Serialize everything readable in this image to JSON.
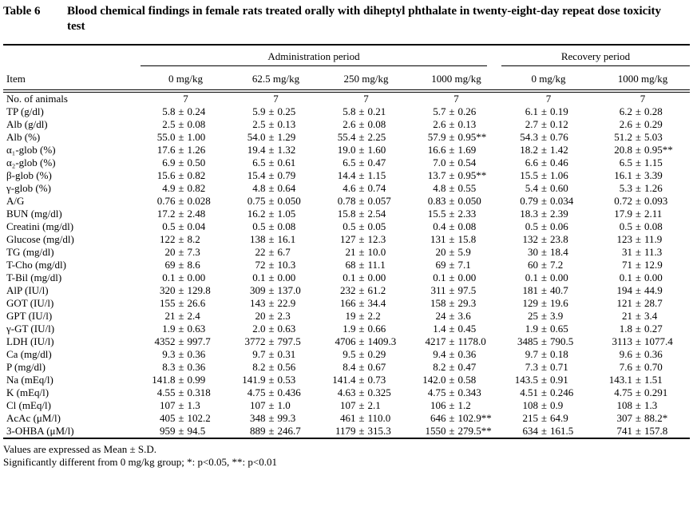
{
  "page": {
    "background": "#ffffff",
    "text_color": "#000000"
  },
  "title": {
    "label": "Table 6",
    "text": "Blood chemical findings in female rats treated orally with diheptyl phthalate in twenty-eight-day repeat dose toxicity test"
  },
  "table": {
    "groups": [
      {
        "label": "Administration period",
        "span": 4
      },
      {
        "label": "Recovery period",
        "span": 2
      }
    ],
    "item_header": "Item",
    "columns": [
      "0 mg/kg",
      "62.5 mg/kg",
      "250 mg/kg",
      "1000 mg/kg",
      "0 mg/kg",
      "1000 mg/kg"
    ],
    "rows": [
      {
        "item": "No. of animals",
        "values": [
          "7",
          "7",
          "7",
          "7",
          "7",
          "7"
        ]
      },
      {
        "item": "TP (g/dl)",
        "values": [
          "5.8 ± 0.24",
          "5.9 ± 0.25",
          "5.8 ± 0.21",
          "5.7 ± 0.26",
          "6.1 ± 0.19",
          "6.2 ± 0.28"
        ]
      },
      {
        "item": "Alb (g/dl)",
        "values": [
          "2.5 ± 0.08",
          "2.5 ± 0.13",
          "2.6 ± 0.08",
          "2.6 ± 0.13",
          "2.7 ± 0.12",
          "2.6 ± 0.29"
        ]
      },
      {
        "item": "Alb (%)",
        "values": [
          "55.0 ± 1.00",
          "54.0 ± 1.29",
          "55.4 ± 2.25",
          "57.9 ± 0.95**",
          "54.3 ± 0.76",
          "51.2 ± 5.03"
        ]
      },
      {
        "item": "α₁-glob (%)",
        "values": [
          "17.6 ± 1.26",
          "19.4 ± 1.32",
          "19.0 ± 1.60",
          "16.6 ± 1.69",
          "18.2 ± 1.42",
          "20.8 ± 0.95**"
        ]
      },
      {
        "item": "α₂-glob (%)",
        "values": [
          "6.9 ± 0.50",
          "6.5 ± 0.61",
          "6.5 ± 0.47",
          "7.0 ± 0.54",
          "6.6 ± 0.46",
          "6.5 ± 1.15"
        ]
      },
      {
        "item": "β-glob (%)",
        "values": [
          "15.6 ± 0.82",
          "15.4 ± 0.79",
          "14.4 ± 1.15",
          "13.7 ± 0.95**",
          "15.5 ± 1.06",
          "16.1 ± 3.39"
        ]
      },
      {
        "item": "γ-glob (%)",
        "values": [
          "4.9 ± 0.82",
          "4.8 ± 0.64",
          "4.6 ± 0.74",
          "4.8 ± 0.55",
          "5.4 ± 0.60",
          "5.3 ± 1.26"
        ]
      },
      {
        "item": "A/G",
        "values": [
          "0.76 ± 0.028",
          "0.75 ± 0.050",
          "0.78 ± 0.057",
          "0.83 ± 0.050",
          "0.79 ± 0.034",
          "0.72 ± 0.093"
        ]
      },
      {
        "item": "BUN (mg/dl)",
        "values": [
          "17.2 ± 2.48",
          "16.2 ± 1.05",
          "15.8 ± 2.54",
          "15.5 ± 2.33",
          "18.3 ± 2.39",
          "17.9 ± 2.11"
        ]
      },
      {
        "item": "Creatini (mg/dl)",
        "values": [
          "0.5 ± 0.04",
          "0.5 ± 0.08",
          "0.5 ± 0.05",
          "0.4 ± 0.08",
          "0.5 ± 0.06",
          "0.5 ± 0.08"
        ]
      },
      {
        "item": "Glucose (mg/dl)",
        "values": [
          "122 ± 8.2",
          "138 ± 16.1",
          "127 ± 12.3",
          "131 ± 15.8",
          "132 ± 23.8",
          "123 ± 11.9"
        ]
      },
      {
        "item": "TG (mg/dl)",
        "values": [
          "20 ± 7.3",
          "22 ± 6.7",
          "21 ± 10.0",
          "20 ± 5.9",
          "30 ± 18.4",
          "31 ± 11.3"
        ]
      },
      {
        "item": "T-Cho (mg/dl)",
        "values": [
          "69 ± 8.6",
          "72 ± 10.3",
          "68 ± 11.1",
          "69 ± 7.1",
          "60 ± 7.2",
          "71 ± 12.9"
        ]
      },
      {
        "item": "T-Bil (mg/dl)",
        "values": [
          "0.1 ± 0.00",
          "0.1 ± 0.00",
          "0.1 ± 0.00",
          "0.1 ± 0.00",
          "0.1 ± 0.00",
          "0.1 ± 0.00"
        ]
      },
      {
        "item": "AlP (IU/l)",
        "values": [
          "320 ± 129.8",
          "309 ± 137.0",
          "232 ± 61.2",
          "311 ± 97.5",
          "181 ± 40.7",
          "194 ± 44.9"
        ]
      },
      {
        "item": "GOT (IU/l)",
        "values": [
          "155 ± 26.6",
          "143 ± 22.9",
          "166 ± 34.4",
          "158 ± 29.3",
          "129 ± 19.6",
          "121 ± 28.7"
        ]
      },
      {
        "item": "GPT (IU/l)",
        "values": [
          "21 ± 2.4",
          "20 ± 2.3",
          "19 ± 2.2",
          "24 ± 3.6",
          "25 ± 3.9",
          "21 ± 3.4"
        ]
      },
      {
        "item": "γ-GT (IU/l)",
        "values": [
          "1.9 ± 0.63",
          "2.0 ± 0.63",
          "1.9 ± 0.66",
          "1.4 ± 0.45",
          "1.9 ± 0.65",
          "1.8 ± 0.27"
        ]
      },
      {
        "item": "LDH (IU/l)",
        "values": [
          "4352 ± 997.7",
          "3772 ± 797.5",
          "4706 ± 1409.3",
          "4217 ± 1178.0",
          "3485 ± 790.5",
          "3113 ± 1077.4"
        ]
      },
      {
        "item": "Ca (mg/dl)",
        "values": [
          "9.3 ± 0.36",
          "9.7 ± 0.31",
          "9.5 ± 0.29",
          "9.4 ± 0.36",
          "9.7 ± 0.18",
          "9.6 ± 0.36"
        ]
      },
      {
        "item": "P (mg/dl)",
        "values": [
          "8.3 ± 0.36",
          "8.2 ± 0.56",
          "8.4 ± 0.67",
          "8.2 ± 0.47",
          "7.3 ± 0.71",
          "7.6 ± 0.70"
        ]
      },
      {
        "item": "Na (mEq/l)",
        "values": [
          "141.8 ± 0.99",
          "141.9 ± 0.53",
          "141.4 ± 0.73",
          "142.0 ± 0.58",
          "143.5 ± 0.91",
          "143.1 ± 1.51"
        ]
      },
      {
        "item": "K (mEq/l)",
        "values": [
          "4.55 ± 0.318",
          "4.75 ± 0.436",
          "4.63 ± 0.325",
          "4.75 ± 0.343",
          "4.51 ± 0.246",
          "4.75 ± 0.291"
        ]
      },
      {
        "item": "Cl (mEq/l)",
        "values": [
          "107 ± 1.3",
          "107 ± 1.0",
          "107 ± 2.1",
          "106 ± 1.2",
          "108 ± 0.9",
          "108 ± 1.3"
        ]
      },
      {
        "item": "AcAc (μM/l)",
        "values": [
          "405 ± 102.2",
          "348 ± 99.3",
          "461 ± 110.0",
          "646 ± 102.9**",
          "215 ± 64.9",
          "307 ± 88.2*"
        ]
      },
      {
        "item": "3-OHBA (μM/l)",
        "values": [
          "959 ± 94.5",
          "889 ± 246.7",
          "1179 ± 315.3",
          "1550 ± 279.5**",
          "634 ± 161.5",
          "741 ± 157.8"
        ]
      }
    ]
  },
  "footnotes": [
    "Values are expressed as Mean ± S.D.",
    "Significantly different from 0 mg/kg group;  *: p<0.05, **: p<0.01"
  ]
}
